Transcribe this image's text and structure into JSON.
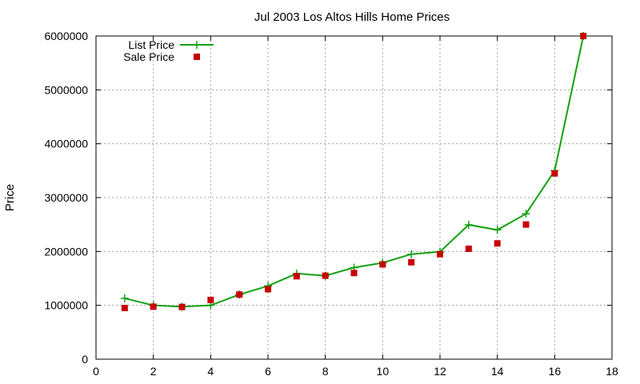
{
  "chart_data": {
    "type": "line",
    "title": "Jul 2003 Los Altos Hills Home Prices",
    "xlabel": "",
    "ylabel": "Price",
    "xlim": [
      0,
      18
    ],
    "ylim": [
      0,
      6000000
    ],
    "x_ticks": [
      0,
      2,
      4,
      6,
      8,
      10,
      12,
      14,
      16,
      18
    ],
    "y_ticks": [
      0,
      1000000,
      2000000,
      3000000,
      4000000,
      5000000,
      6000000
    ],
    "grid": true,
    "legend_position": "top-left",
    "series": [
      {
        "name": "List Price",
        "style": "line-with-plus-markers",
        "color": "#13a113",
        "x": [
          1,
          2,
          3,
          4,
          5,
          6,
          7,
          8,
          9,
          10,
          11,
          12,
          13,
          14,
          15,
          16,
          17
        ],
        "values": [
          1130000,
          1000000,
          975000,
          1000000,
          1200000,
          1360000,
          1590000,
          1550000,
          1700000,
          1790000,
          1950000,
          1995000,
          2495000,
          2400000,
          2700000,
          3500000,
          6000000
        ]
      },
      {
        "name": "Sale Price",
        "style": "square-markers",
        "color": "#c80000",
        "x": [
          1,
          2,
          3,
          4,
          5,
          6,
          7,
          8,
          9,
          10,
          11,
          12,
          13,
          14,
          15,
          16,
          17
        ],
        "values": [
          950000,
          975000,
          970000,
          1100000,
          1200000,
          1300000,
          1540000,
          1550000,
          1600000,
          1760000,
          1800000,
          1950000,
          2050000,
          2150000,
          2500000,
          3450000,
          6000000
        ]
      }
    ]
  }
}
